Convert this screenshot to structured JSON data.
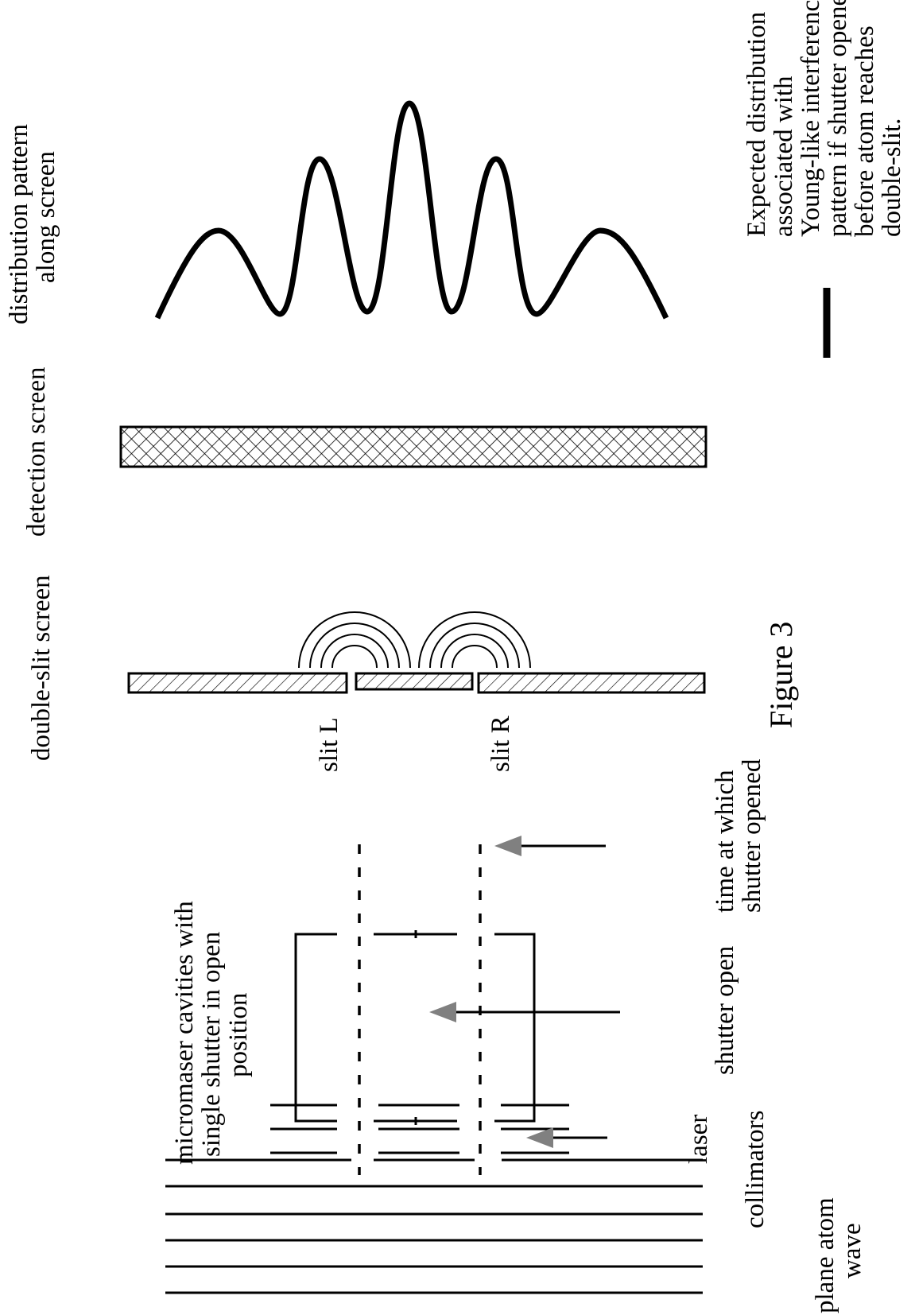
{
  "figure_caption": "Figure 3",
  "labels": {
    "plane_atom_wave": [
      "plane atom",
      "wave"
    ],
    "collimators": "collimators",
    "laser": "laser",
    "micromaser": [
      "micromaser cavities with",
      "single shutter in open",
      "position"
    ],
    "shutter_open": "shutter open",
    "time_shutter": [
      "time at which",
      "shutter opened"
    ],
    "slit_l": "slit L",
    "slit_r": "slit R",
    "double_slit_screen": "double-slit screen",
    "detection_screen": "detection screen",
    "distribution": [
      "distribution pattern",
      "along screen"
    ],
    "legend": [
      "Expected distribution",
      "associated with",
      "Young-like interference",
      "pattern if shutter opened",
      "before atom reaches",
      "double-slit."
    ]
  },
  "colors": {
    "ink": "#000000",
    "arrowhead": "#808080",
    "background": "#ffffff"
  }
}
